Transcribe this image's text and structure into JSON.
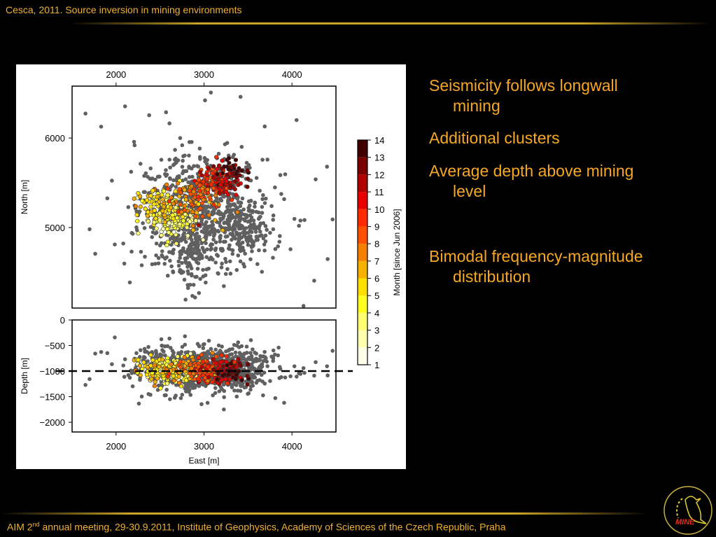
{
  "header": {
    "title": "Cesca, 2011. Source inversion in mining environments"
  },
  "bullets": [
    {
      "line1": "Seismicity follows longwall",
      "line2": "mining"
    },
    {
      "line1": "Additional clusters",
      "line2": ""
    },
    {
      "line1": "Average depth above mining",
      "line2": "level"
    },
    {
      "line1": "Bimodal frequency-magnitude",
      "line2": "distribution"
    }
  ],
  "footer": {
    "pre": "AIM 2",
    "sup": "nd",
    "post": " annual meeting, 29-30.9.2011, Institute of Geophysics, Academy of Sciences of the Czech Republic, Praha"
  },
  "logo": {
    "text": "MINE"
  },
  "chart_data": {
    "type": "scatter",
    "x_label": "East [m]",
    "x_ticks": [
      2000,
      3000,
      4000
    ],
    "xlim": [
      1500,
      4500
    ],
    "panels": [
      {
        "name": "map",
        "y_label": "North [m]",
        "y_ticks": [
          5000,
          6000
        ],
        "ylim": [
          4100,
          6580
        ]
      },
      {
        "name": "depth",
        "y_label": "Depth [m]",
        "y_ticks": [
          0,
          -500,
          -1000,
          -1500,
          -2000
        ],
        "ylim": [
          -2190,
          0
        ],
        "reference_line": -1000
      }
    ],
    "colorbar": {
      "label": "Month [since Jun 2006]",
      "ticks": [
        1,
        2,
        3,
        4,
        5,
        6,
        7,
        8,
        9,
        10,
        11,
        12,
        13,
        14
      ],
      "colors": [
        "#fffde8",
        "#ffffb0",
        "#ffff70",
        "#ffff20",
        "#ffe000",
        "#f5b000",
        "#f58000",
        "#ff5000",
        "#ff2a00",
        "#e80000",
        "#b00000",
        "#7a0000",
        "#400000"
      ]
    },
    "unclassified_color": "#606060",
    "clusters": [
      {
        "east": 2950,
        "north": 5200,
        "depth": -950,
        "sd_e": 350,
        "sd_n": 320,
        "sd_d": 200,
        "n": 700,
        "month": 0
      },
      {
        "east": 3450,
        "north": 4950,
        "depth": -1000,
        "sd_e": 150,
        "sd_n": 150,
        "sd_d": 180,
        "n": 150,
        "month": 0
      },
      {
        "east": 2850,
        "north": 4750,
        "depth": -1050,
        "sd_e": 90,
        "sd_n": 200,
        "sd_d": 200,
        "n": 120,
        "month": 0
      },
      {
        "east": 2900,
        "north": 5300,
        "depth": -1100,
        "sd_e": 900,
        "sd_n": 650,
        "sd_d": 350,
        "n": 90,
        "month": 0
      },
      {
        "east": 2650,
        "north": 5100,
        "depth": -960,
        "sd_e": 120,
        "sd_n": 110,
        "sd_d": 110,
        "n": 160,
        "month": 3
      },
      {
        "east": 2500,
        "north": 5250,
        "depth": -1000,
        "sd_e": 140,
        "sd_n": 100,
        "sd_d": 120,
        "n": 90,
        "month": 5
      },
      {
        "east": 2850,
        "north": 5300,
        "depth": -980,
        "sd_e": 160,
        "sd_n": 130,
        "sd_d": 120,
        "n": 90,
        "month": 7
      },
      {
        "east": 3100,
        "north": 5500,
        "depth": -1000,
        "sd_e": 110,
        "sd_n": 80,
        "sd_d": 120,
        "n": 110,
        "month": 9
      },
      {
        "east": 3250,
        "north": 5550,
        "depth": -1000,
        "sd_e": 100,
        "sd_n": 80,
        "sd_d": 110,
        "n": 60,
        "month": 11
      },
      {
        "east": 3300,
        "north": 5650,
        "depth": -1000,
        "sd_e": 80,
        "sd_n": 60,
        "sd_d": 100,
        "n": 25,
        "month": 13
      }
    ]
  }
}
